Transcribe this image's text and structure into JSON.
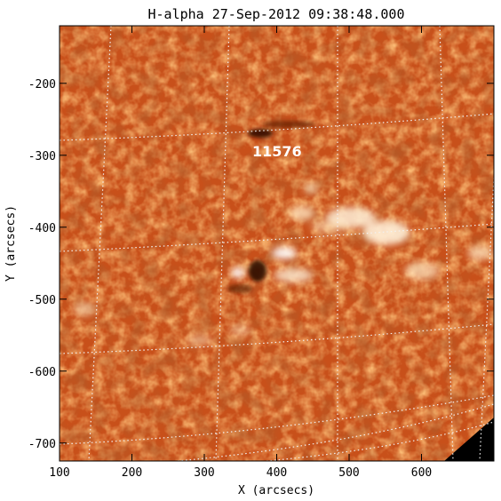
{
  "title": "H-alpha 27-Sep-2012 09:38:48.000",
  "x_axis": {
    "label": "X (arcsecs)",
    "range": [
      100,
      700
    ],
    "ticks": [
      100,
      200,
      300,
      400,
      500,
      600
    ]
  },
  "y_axis": {
    "label": "Y (arcsecs)",
    "range": [
      -120,
      -725
    ],
    "ticks": [
      -200,
      -300,
      -400,
      -500,
      -600,
      -700
    ]
  },
  "active_region": {
    "label": "11576",
    "x": 380,
    "y": -290
  },
  "colors": {
    "base": "#c8501a",
    "dark": "#8e2a08",
    "bright": "#ffe6c0",
    "grid": "#f2f2f2",
    "frame": "#000000"
  }
}
